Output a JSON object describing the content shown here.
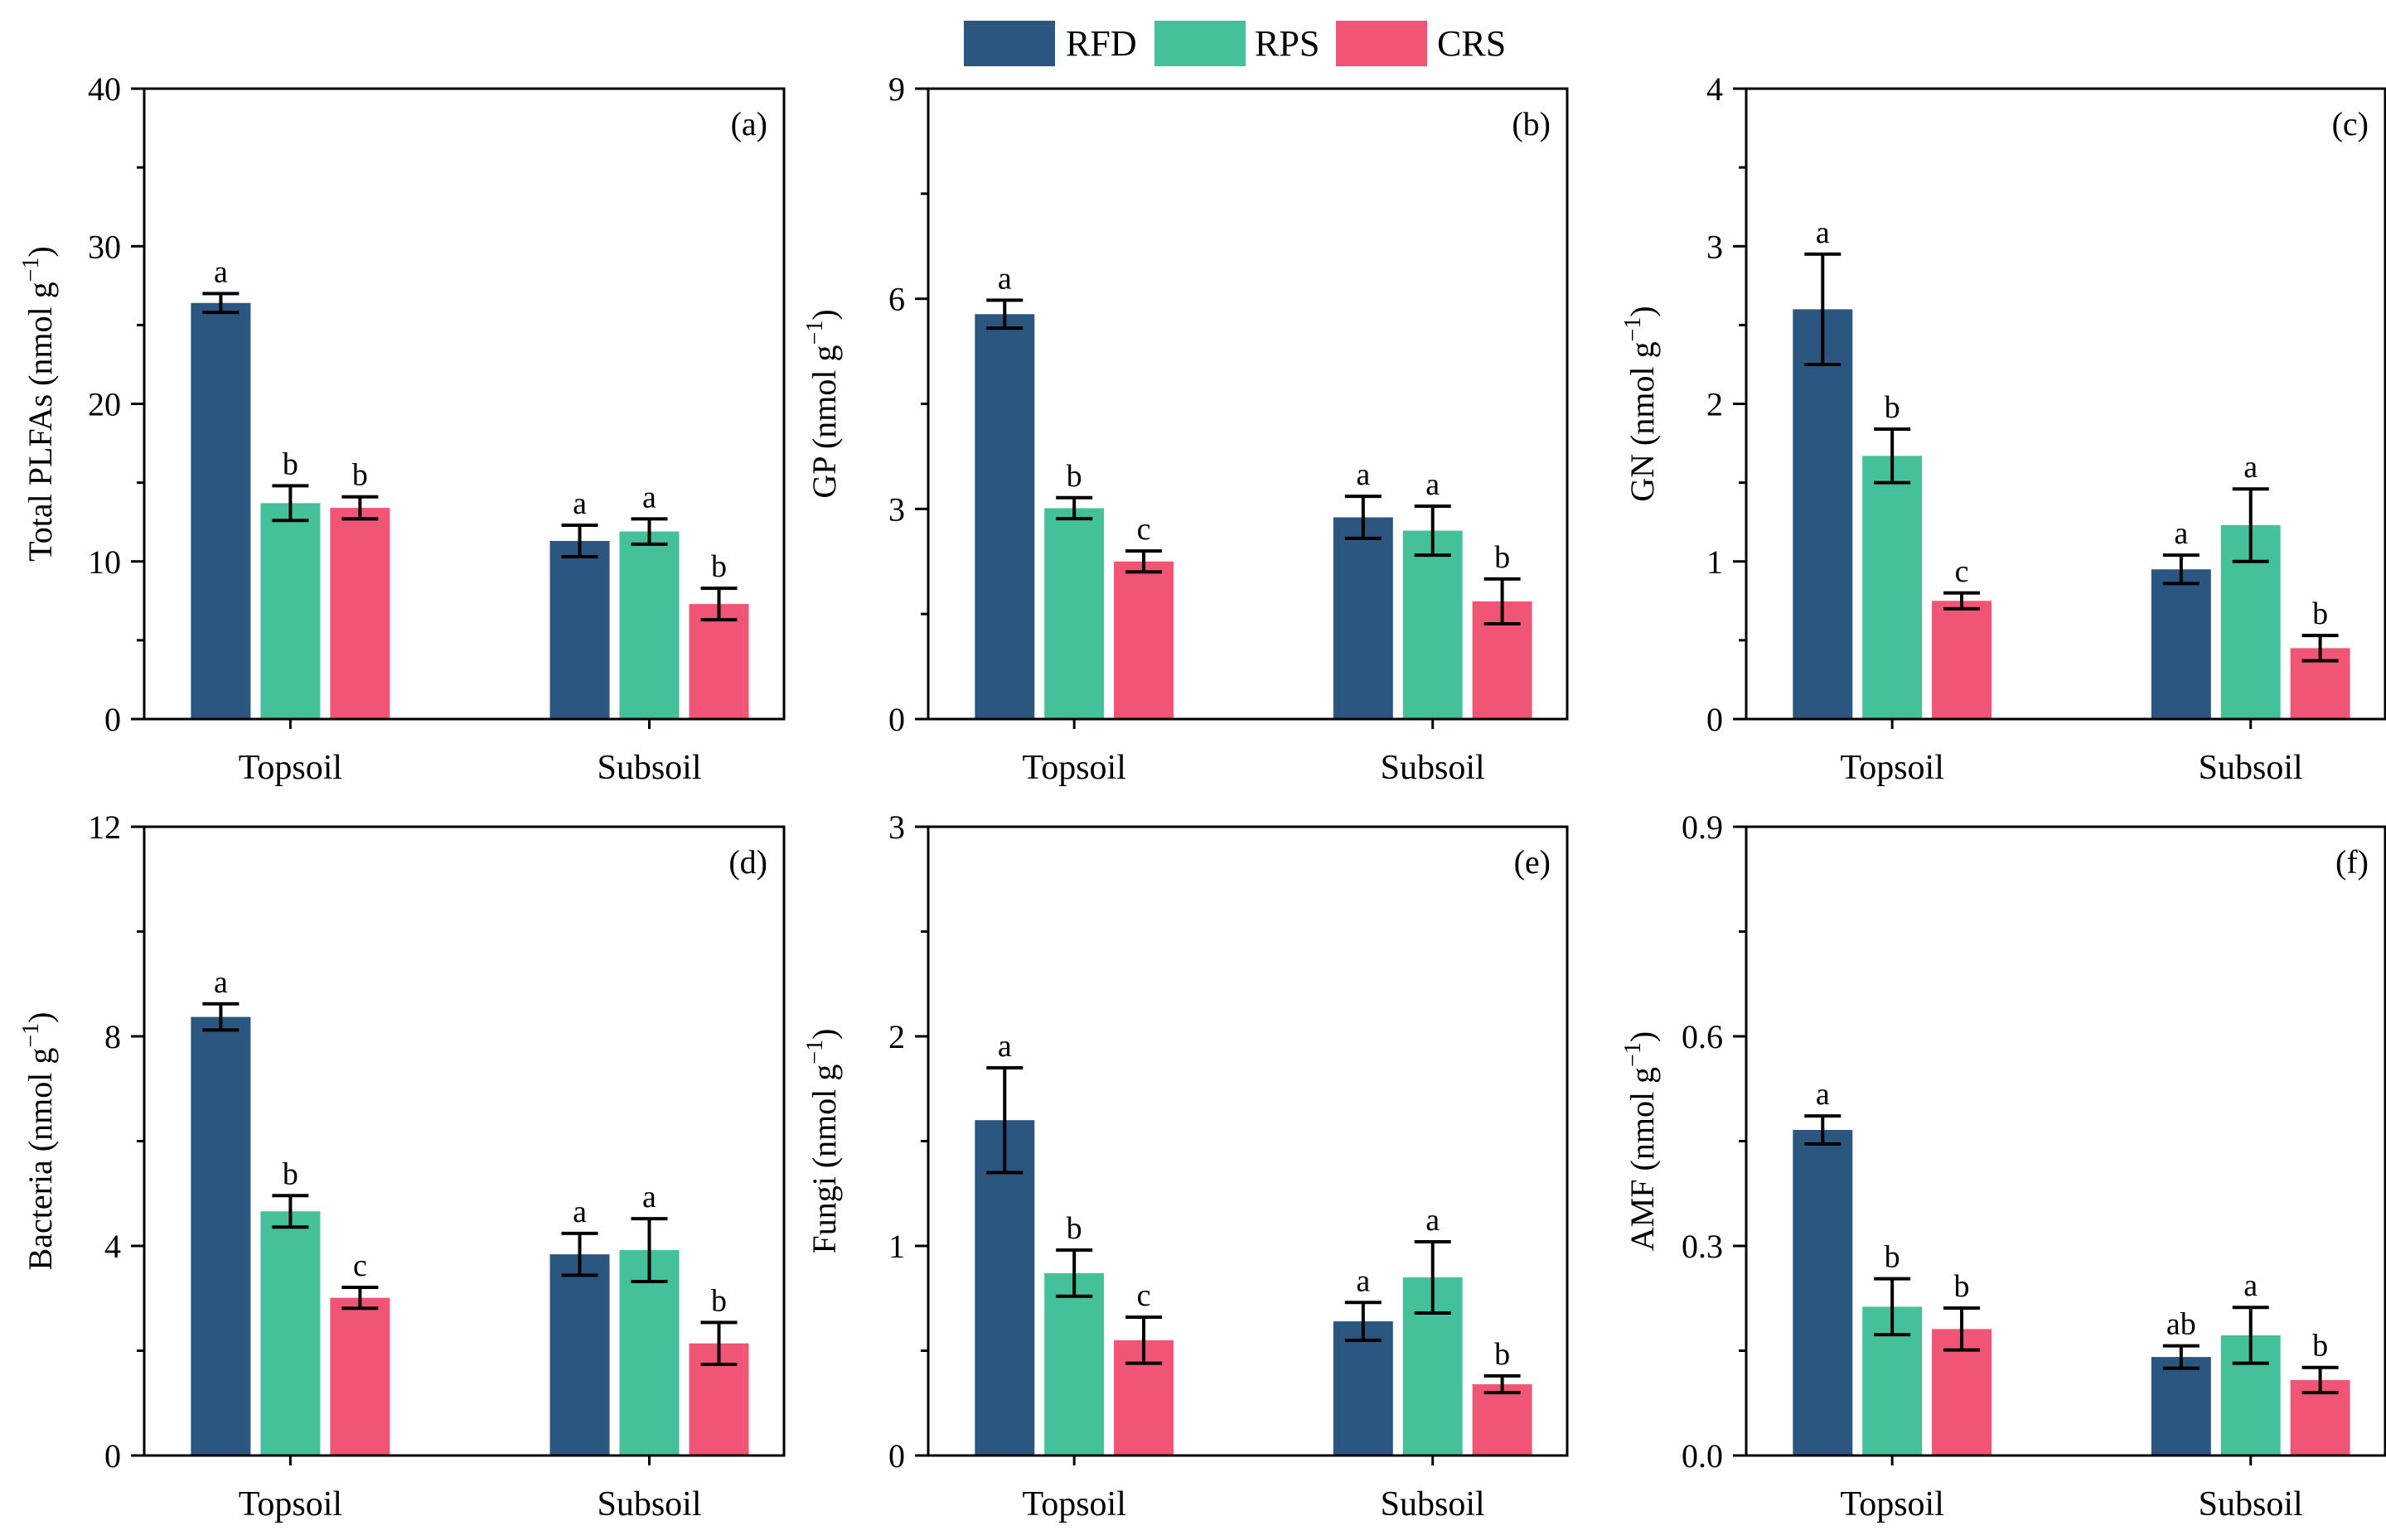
{
  "legend": [
    {
      "key": "RFD",
      "label": "RFD",
      "color": "#2b5680"
    },
    {
      "key": "RPS",
      "label": "RPS",
      "color": "#44c19a"
    },
    {
      "key": "CRS",
      "label": "CRS",
      "color": "#f05575"
    }
  ],
  "chart_data": [
    {
      "type": "bar",
      "id": "a",
      "tag": "(a)",
      "ylabel": "Total PLFAs (nmol g",
      "ylabel_sup": "−1",
      "ylabel_end": ")",
      "categories": [
        "Topsoil",
        "Subsoil"
      ],
      "ylim": [
        0,
        40
      ],
      "ymajor": [
        0,
        10,
        20,
        30,
        40
      ],
      "ymajor_labels": [
        "0",
        "10",
        "20",
        "30",
        "40"
      ],
      "yminor": 5,
      "series": [
        {
          "name": "RFD",
          "values": [
            26.4,
            11.3
          ],
          "errors": [
            0.6,
            1.0
          ],
          "sig": [
            "a",
            "a"
          ]
        },
        {
          "name": "RPS",
          "values": [
            13.7,
            11.9
          ],
          "errors": [
            1.1,
            0.8
          ],
          "sig": [
            "b",
            "a"
          ]
        },
        {
          "name": "CRS",
          "values": [
            13.4,
            7.3
          ],
          "errors": [
            0.7,
            1.0
          ],
          "sig": [
            "b",
            "b"
          ]
        }
      ]
    },
    {
      "type": "bar",
      "id": "b",
      "tag": "(b)",
      "ylabel": "GP (nmol g",
      "ylabel_sup": "−1",
      "ylabel_end": ")",
      "categories": [
        "Topsoil",
        "Subsoil"
      ],
      "ylim": [
        0,
        9
      ],
      "ymajor": [
        0,
        3,
        6,
        9
      ],
      "ymajor_labels": [
        "0",
        "3",
        "6",
        "9"
      ],
      "yminor": 1.5,
      "series": [
        {
          "name": "RFD",
          "values": [
            5.78,
            2.88
          ],
          "errors": [
            0.2,
            0.3
          ],
          "sig": [
            "a",
            "a"
          ]
        },
        {
          "name": "RPS",
          "values": [
            3.01,
            2.69
          ],
          "errors": [
            0.15,
            0.35
          ],
          "sig": [
            "b",
            "a"
          ]
        },
        {
          "name": "CRS",
          "values": [
            2.25,
            1.68
          ],
          "errors": [
            0.15,
            0.32
          ],
          "sig": [
            "c",
            "b"
          ]
        }
      ]
    },
    {
      "type": "bar",
      "id": "c",
      "tag": "(c)",
      "ylabel": "GN (nmol g",
      "ylabel_sup": "−1",
      "ylabel_end": ")",
      "categories": [
        "Topsoil",
        "Subsoil"
      ],
      "ylim": [
        0,
        4
      ],
      "ymajor": [
        0,
        1,
        2,
        3,
        4
      ],
      "ymajor_labels": [
        "0",
        "1",
        "2",
        "3",
        "4"
      ],
      "yminor": 0.5,
      "series": [
        {
          "name": "RFD",
          "values": [
            2.6,
            0.95
          ],
          "errors": [
            0.35,
            0.09
          ],
          "sig": [
            "a",
            "a"
          ]
        },
        {
          "name": "RPS",
          "values": [
            1.67,
            1.23
          ],
          "errors": [
            0.17,
            0.23
          ],
          "sig": [
            "b",
            "a"
          ]
        },
        {
          "name": "CRS",
          "values": [
            0.75,
            0.45
          ],
          "errors": [
            0.05,
            0.08
          ],
          "sig": [
            "c",
            "b"
          ]
        }
      ]
    },
    {
      "type": "bar",
      "id": "d",
      "tag": "(d)",
      "ylabel": "Bacteria (nmol g",
      "ylabel_sup": "−1",
      "ylabel_end": ")",
      "categories": [
        "Topsoil",
        "Subsoil"
      ],
      "ylim": [
        0,
        12
      ],
      "ymajor": [
        0,
        4,
        8,
        12
      ],
      "ymajor_labels": [
        "0",
        "4",
        "8",
        "12"
      ],
      "yminor": 2,
      "series": [
        {
          "name": "RFD",
          "values": [
            8.37,
            3.84
          ],
          "errors": [
            0.25,
            0.4
          ],
          "sig": [
            "a",
            "a"
          ]
        },
        {
          "name": "RPS",
          "values": [
            4.66,
            3.92
          ],
          "errors": [
            0.3,
            0.6
          ],
          "sig": [
            "b",
            "a"
          ]
        },
        {
          "name": "CRS",
          "values": [
            3.01,
            2.14
          ],
          "errors": [
            0.2,
            0.4
          ],
          "sig": [
            "c",
            "b"
          ]
        }
      ]
    },
    {
      "type": "bar",
      "id": "e",
      "tag": "(e)",
      "ylabel": "Fungi (nmol g",
      "ylabel_sup": "−1",
      "ylabel_end": ")",
      "categories": [
        "Topsoil",
        "Subsoil"
      ],
      "ylim": [
        0,
        3
      ],
      "ymajor": [
        0,
        1,
        2,
        3
      ],
      "ymajor_labels": [
        "0",
        "1",
        "2",
        "3"
      ],
      "yminor": 0.5,
      "series": [
        {
          "name": "RFD",
          "values": [
            1.6,
            0.64
          ],
          "errors": [
            0.25,
            0.09
          ],
          "sig": [
            "a",
            "a"
          ]
        },
        {
          "name": "RPS",
          "values": [
            0.87,
            0.85
          ],
          "errors": [
            0.11,
            0.17
          ],
          "sig": [
            "b",
            "a"
          ]
        },
        {
          "name": "CRS",
          "values": [
            0.55,
            0.34
          ],
          "errors": [
            0.11,
            0.04
          ],
          "sig": [
            "c",
            "b"
          ]
        }
      ]
    },
    {
      "type": "bar",
      "id": "f",
      "tag": "(f)",
      "ylabel": "AMF (nmol g",
      "ylabel_sup": "−1",
      "ylabel_end": ")",
      "categories": [
        "Topsoil",
        "Subsoil"
      ],
      "ylim": [
        0,
        0.9
      ],
      "ymajor": [
        0,
        0.3,
        0.6,
        0.9
      ],
      "ymajor_labels": [
        "0.0",
        "0.3",
        "0.6",
        "0.9"
      ],
      "yminor": 0.15,
      "series": [
        {
          "name": "RFD",
          "values": [
            0.466,
            0.141
          ],
          "errors": [
            0.02,
            0.016
          ],
          "sig": [
            "a",
            "ab"
          ]
        },
        {
          "name": "RPS",
          "values": [
            0.213,
            0.172
          ],
          "errors": [
            0.04,
            0.04
          ],
          "sig": [
            "b",
            "a"
          ]
        },
        {
          "name": "CRS",
          "values": [
            0.181,
            0.108
          ],
          "errors": [
            0.03,
            0.018
          ],
          "sig": [
            "b",
            "b"
          ]
        }
      ]
    }
  ]
}
